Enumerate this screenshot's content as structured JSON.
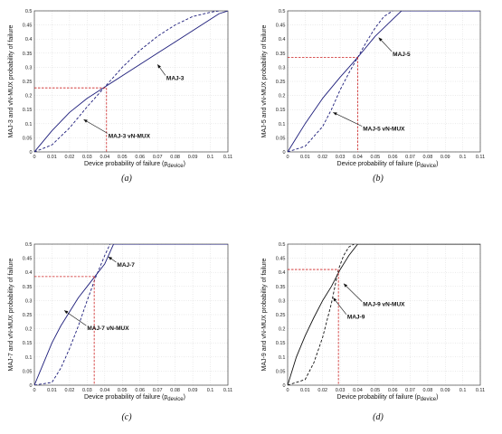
{
  "chart_data": [
    {
      "type": "line",
      "caption": "(a)",
      "xlabel_main": "Device probability of failure (p",
      "xlabel_sub": "device",
      "xlabel_close": ")",
      "ylabel": "MAJ-3  and vN-MUX  probability of failure",
      "xlim": [
        0,
        0.11
      ],
      "ylim": [
        0,
        0.5
      ],
      "xticks": [
        "0",
        "0.01",
        "0.02",
        "0.03",
        "0.04",
        "0.05",
        "0.06",
        "0.07",
        "0.08",
        "0.09",
        "0.1",
        "0.11"
      ],
      "yticks": [
        "0",
        "0.05",
        "0.1",
        "0.15",
        "0.2",
        "0.25",
        "0.3",
        "0.35",
        "0.4",
        "0.45",
        "0.5"
      ],
      "grid": true,
      "series": [
        {
          "name": "MAJ-3",
          "style": "solid",
          "x": [
            0,
            0.01,
            0.02,
            0.03,
            0.04,
            0.05,
            0.06,
            0.07,
            0.08,
            0.09,
            0.1,
            0.105,
            0.11
          ],
          "y": [
            0,
            0.075,
            0.14,
            0.19,
            0.23,
            0.27,
            0.31,
            0.35,
            0.39,
            0.43,
            0.47,
            0.49,
            0.5
          ]
        },
        {
          "name": "MAJ-3 vN-MUX",
          "style": "dashed",
          "x": [
            0,
            0.01,
            0.02,
            0.03,
            0.04,
            0.05,
            0.06,
            0.07,
            0.08,
            0.09,
            0.1,
            0.105
          ],
          "y": [
            0,
            0.025,
            0.085,
            0.16,
            0.23,
            0.3,
            0.36,
            0.41,
            0.45,
            0.48,
            0.495,
            0.5
          ]
        }
      ],
      "crossing": {
        "x": 0.041,
        "y": 0.227
      },
      "annotations": [
        {
          "text": "MAJ-3",
          "tx": 0.075,
          "ty": 0.255,
          "px": 0.07,
          "py": 0.31
        },
        {
          "text": "MAJ-3 vN-MUX",
          "tx": 0.042,
          "ty": 0.05,
          "px": 0.028,
          "py": 0.115
        }
      ]
    },
    {
      "type": "line",
      "caption": "(b)",
      "xlabel_main": "Device probability of failure (p",
      "xlabel_sub": "device",
      "xlabel_close": ")",
      "ylabel": "MAJ-5  and vN-MUX  probability of failure",
      "xlim": [
        0,
        0.11
      ],
      "ylim": [
        0,
        0.5
      ],
      "xticks": [
        "0",
        "0.01",
        "0.02",
        "0.03",
        "0.04",
        "0.05",
        "0.06",
        "0.07",
        "0.08",
        "0.09",
        "0.1",
        "0.11"
      ],
      "yticks": [
        "0",
        "0.05",
        "0.1",
        "0.15",
        "0.2",
        "0.25",
        "0.3",
        "0.35",
        "0.4",
        "0.45",
        "0.5"
      ],
      "grid": true,
      "series": [
        {
          "name": "MAJ-5",
          "style": "solid",
          "x": [
            0,
            0.005,
            0.01,
            0.02,
            0.03,
            0.04,
            0.05,
            0.06,
            0.065,
            0.11
          ],
          "y": [
            0,
            0.05,
            0.1,
            0.19,
            0.265,
            0.335,
            0.41,
            0.47,
            0.5,
            0.5
          ]
        },
        {
          "name": "MAJ-5 vN-MUX",
          "style": "dashed",
          "x": [
            0,
            0.01,
            0.02,
            0.025,
            0.03,
            0.035,
            0.04,
            0.045,
            0.05,
            0.055,
            0.06
          ],
          "y": [
            0,
            0.02,
            0.09,
            0.15,
            0.22,
            0.28,
            0.335,
            0.39,
            0.44,
            0.48,
            0.5
          ]
        }
      ],
      "crossing": {
        "x": 0.04,
        "y": 0.335
      },
      "annotations": [
        {
          "text": "MAJ-5",
          "tx": 0.06,
          "ty": 0.34,
          "px": 0.052,
          "py": 0.405
        },
        {
          "text": "MAJ-5 vN-MUX",
          "tx": 0.043,
          "ty": 0.075,
          "px": 0.026,
          "py": 0.14
        }
      ]
    },
    {
      "type": "line",
      "caption": "(c)",
      "xlabel_main": "Device probability of failure (p",
      "xlabel_sub": "device",
      "xlabel_close": ")",
      "ylabel": "MAJ-7  and vN-MUX  probability of failure",
      "xlim": [
        0,
        0.11
      ],
      "ylim": [
        0,
        0.5
      ],
      "xticks": [
        "0",
        "0.01",
        "0.02",
        "0.03",
        "0.04",
        "0.05",
        "0.06",
        "0.07",
        "0.08",
        "0.09",
        "0.1",
        "0.11"
      ],
      "yticks": [
        "0",
        "0.05",
        "0.1",
        "0.15",
        "0.2",
        "0.25",
        "0.3",
        "0.35",
        "0.4",
        "0.45",
        "0.5"
      ],
      "grid": true,
      "series": [
        {
          "name": "MAJ-7",
          "style": "solid",
          "x": [
            0,
            0.005,
            0.01,
            0.015,
            0.02,
            0.025,
            0.03,
            0.035,
            0.04,
            0.045,
            0.11
          ],
          "y": [
            0,
            0.075,
            0.15,
            0.21,
            0.26,
            0.31,
            0.35,
            0.39,
            0.43,
            0.5,
            0.5
          ]
        },
        {
          "name": "MAJ-7 vN-MUX",
          "style": "dashed",
          "x": [
            0,
            0.01,
            0.015,
            0.02,
            0.025,
            0.03,
            0.035,
            0.04,
            0.043
          ],
          "y": [
            0,
            0.01,
            0.06,
            0.13,
            0.21,
            0.3,
            0.385,
            0.46,
            0.5
          ]
        }
      ],
      "crossing": {
        "x": 0.034,
        "y": 0.385
      },
      "annotations": [
        {
          "text": "MAJ-7",
          "tx": 0.047,
          "ty": 0.42,
          "px": 0.042,
          "py": 0.455
        },
        {
          "text": "MAJ-7 vN-MUX",
          "tx": 0.03,
          "ty": 0.195,
          "px": 0.017,
          "py": 0.265
        }
      ]
    },
    {
      "type": "line",
      "caption": "(d)",
      "xlabel_main": "Device probability of failure (p",
      "xlabel_sub": "device",
      "xlabel_close": ")",
      "ylabel": "MAJ-9  and vN-MUX  probability of failure",
      "xlim": [
        0,
        0.11
      ],
      "ylim": [
        0,
        0.5
      ],
      "xticks": [
        "0",
        "0.01",
        "0.02",
        "0.03",
        "0.04",
        "0.05",
        "0.06",
        "0.07",
        "0.08",
        "0.09",
        "0.1",
        "0.11"
      ],
      "yticks": [
        "0",
        "0.05",
        "0.1",
        "0.15",
        "0.2",
        "0.25",
        "0.3",
        "0.35",
        "0.4",
        "0.45",
        "0.5"
      ],
      "grid": true,
      "series": [
        {
          "name": "MAJ-9",
          "style": "solid",
          "x": [
            0,
            0.005,
            0.01,
            0.015,
            0.02,
            0.025,
            0.03,
            0.035,
            0.04,
            0.11
          ],
          "y": [
            0,
            0.1,
            0.175,
            0.24,
            0.3,
            0.35,
            0.41,
            0.46,
            0.5,
            0.5
          ]
        },
        {
          "name": "MAJ-9 vN-MUX",
          "style": "dashed",
          "x": [
            0,
            0.01,
            0.015,
            0.02,
            0.025,
            0.029,
            0.032,
            0.035,
            0.038
          ],
          "y": [
            0,
            0.02,
            0.08,
            0.17,
            0.29,
            0.41,
            0.46,
            0.49,
            0.5
          ]
        }
      ],
      "crossing": {
        "x": 0.029,
        "y": 0.41
      },
      "annotations": [
        {
          "text": "MAJ-9 vN-MUX",
          "tx": 0.043,
          "ty": 0.28,
          "px": 0.032,
          "py": 0.36
        },
        {
          "text": "MAJ-9",
          "tx": 0.034,
          "ty": 0.235,
          "px": 0.026,
          "py": 0.31
        }
      ]
    }
  ]
}
